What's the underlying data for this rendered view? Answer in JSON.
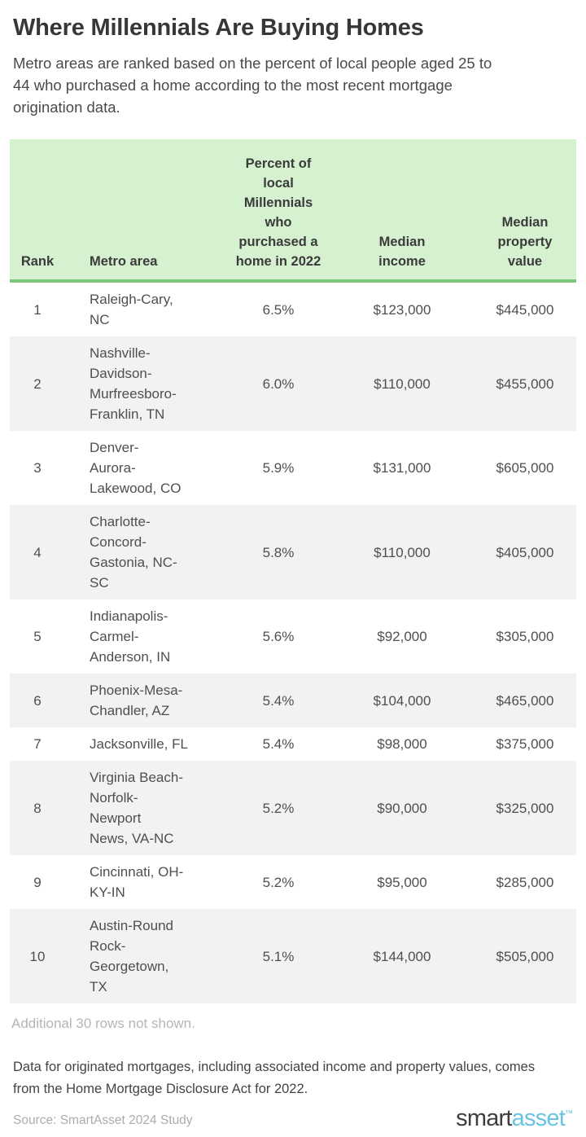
{
  "colors": {
    "header_green_bg": "#d5f1d0",
    "header_green_border": "#7dc87a",
    "row_alt_gray": "#f2f2f2",
    "title_text": "#373737",
    "body_text": "#4a4a4a",
    "muted_text": "#b5b5b5",
    "source_text": "#acacac",
    "logo_dark": "#3e3e3e",
    "logo_blue": "#69c4e3"
  },
  "chart_data": {
    "type": "table",
    "title": "Where Millennials Are Buying Homes",
    "subtitle": "Metro areas are ranked based on the percent of local people aged 25 to\n44 who purchased a home according to the most recent mortgage\norigination data.",
    "columns": [
      "Rank",
      "Metro area",
      "Percent of\nlocal\nMillennials\nwho\npurchased a\nhome in 2022",
      "Median\nincome",
      "Median\nproperty\nvalue"
    ],
    "rows": [
      {
        "rank": "1",
        "metro": "Raleigh-Cary,\nNC",
        "percent": "6.5%",
        "median_income": "$123,000",
        "median_property_value": "$445,000"
      },
      {
        "rank": "2",
        "metro": "Nashville-\nDavidson-\nMurfreesboro-\nFranklin, TN",
        "percent": "6.0%",
        "median_income": "$110,000",
        "median_property_value": "$455,000"
      },
      {
        "rank": "3",
        "metro": "Denver-\nAurora-\nLakewood, CO",
        "percent": "5.9%",
        "median_income": "$131,000",
        "median_property_value": "$605,000"
      },
      {
        "rank": "4",
        "metro": "Charlotte-\nConcord-\nGastonia, NC-\nSC",
        "percent": "5.8%",
        "median_income": "$110,000",
        "median_property_value": "$405,000"
      },
      {
        "rank": "5",
        "metro": "Indianapolis-\nCarmel-\nAnderson, IN",
        "percent": "5.6%",
        "median_income": "$92,000",
        "median_property_value": "$305,000"
      },
      {
        "rank": "6",
        "metro": "Phoenix-Mesa-\nChandler, AZ",
        "percent": "5.4%",
        "median_income": "$104,000",
        "median_property_value": "$465,000"
      },
      {
        "rank": "7",
        "metro": "Jacksonville, FL",
        "percent": "5.4%",
        "median_income": "$98,000",
        "median_property_value": "$375,000"
      },
      {
        "rank": "8",
        "metro": "Virginia Beach-\nNorfolk-\nNewport\nNews, VA-NC",
        "percent": "5.2%",
        "median_income": "$90,000",
        "median_property_value": "$325,000"
      },
      {
        "rank": "9",
        "metro": "Cincinnati, OH-\nKY-IN",
        "percent": "5.2%",
        "median_income": "$95,000",
        "median_property_value": "$285,000"
      },
      {
        "rank": "10",
        "metro": "Austin-Round\nRock-\nGeorgetown,\nTX",
        "percent": "5.1%",
        "median_income": "$144,000",
        "median_property_value": "$505,000"
      }
    ],
    "footnote": "Additional 30 rows not shown.",
    "data_note": "Data for originated mortgages, including associated income and property values, comes\nfrom the Home Mortgage Disclosure Act for 2022.",
    "source": "Source: SmartAsset 2024 Study",
    "logo": {
      "smart": "smart",
      "asset": "asset",
      "tm": "™"
    }
  }
}
